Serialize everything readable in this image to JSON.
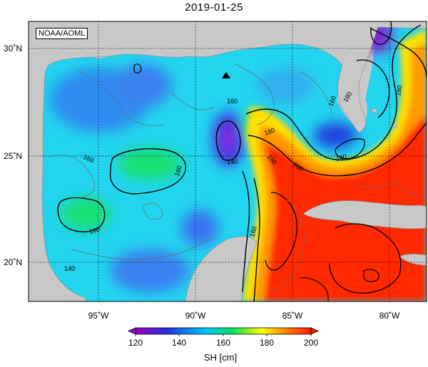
{
  "title": "2019-01-25",
  "credit": "NOAA/AOML",
  "map": {
    "lon_labels": [
      "95˚W",
      "90˚W",
      "85˚W",
      "80˚W"
    ],
    "lat_labels": [
      "30˚N",
      "25˚N",
      "20˚N"
    ],
    "marker": "triangle",
    "contour_labels": [
      "160",
      "160",
      "160",
      "160",
      "140",
      "160",
      "180",
      "180",
      "140",
      "160",
      "180",
      "160",
      "160",
      "140"
    ]
  },
  "colorbar": {
    "ticks": [
      "120",
      "140",
      "160",
      "180",
      "200"
    ],
    "label": "SH [cm]",
    "range": [
      120,
      200
    ]
  },
  "colors": {
    "land": "#c8c8c8",
    "scale": [
      "#a000c8",
      "#2030e0",
      "#00c8ff",
      "#00e060",
      "#ffff00",
      "#ff8000",
      "#ff1a00"
    ]
  }
}
